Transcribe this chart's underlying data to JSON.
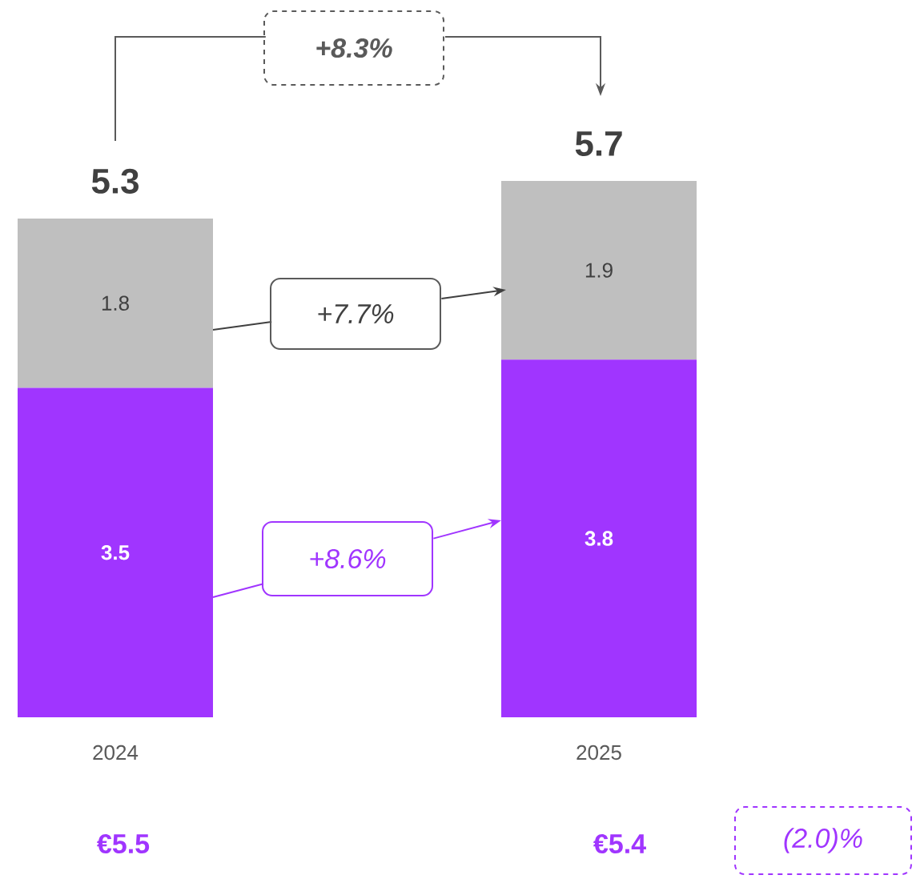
{
  "chart_data": {
    "type": "bar",
    "stacked": true,
    "data_labels": true,
    "categories": [
      "2024",
      "2025"
    ],
    "series": [
      {
        "color": "#a035ff",
        "values": [
          3.5,
          3.8
        ]
      },
      {
        "color": "#bfbfbf",
        "values": [
          1.8,
          1.9
        ]
      }
    ],
    "totals": [
      "5.3",
      "5.7"
    ],
    "annotations": [
      "+8.3%",
      "+7.7%",
      "+8.6%",
      "€5.5",
      "€5.4",
      "(2.0)%"
    ]
  }
}
